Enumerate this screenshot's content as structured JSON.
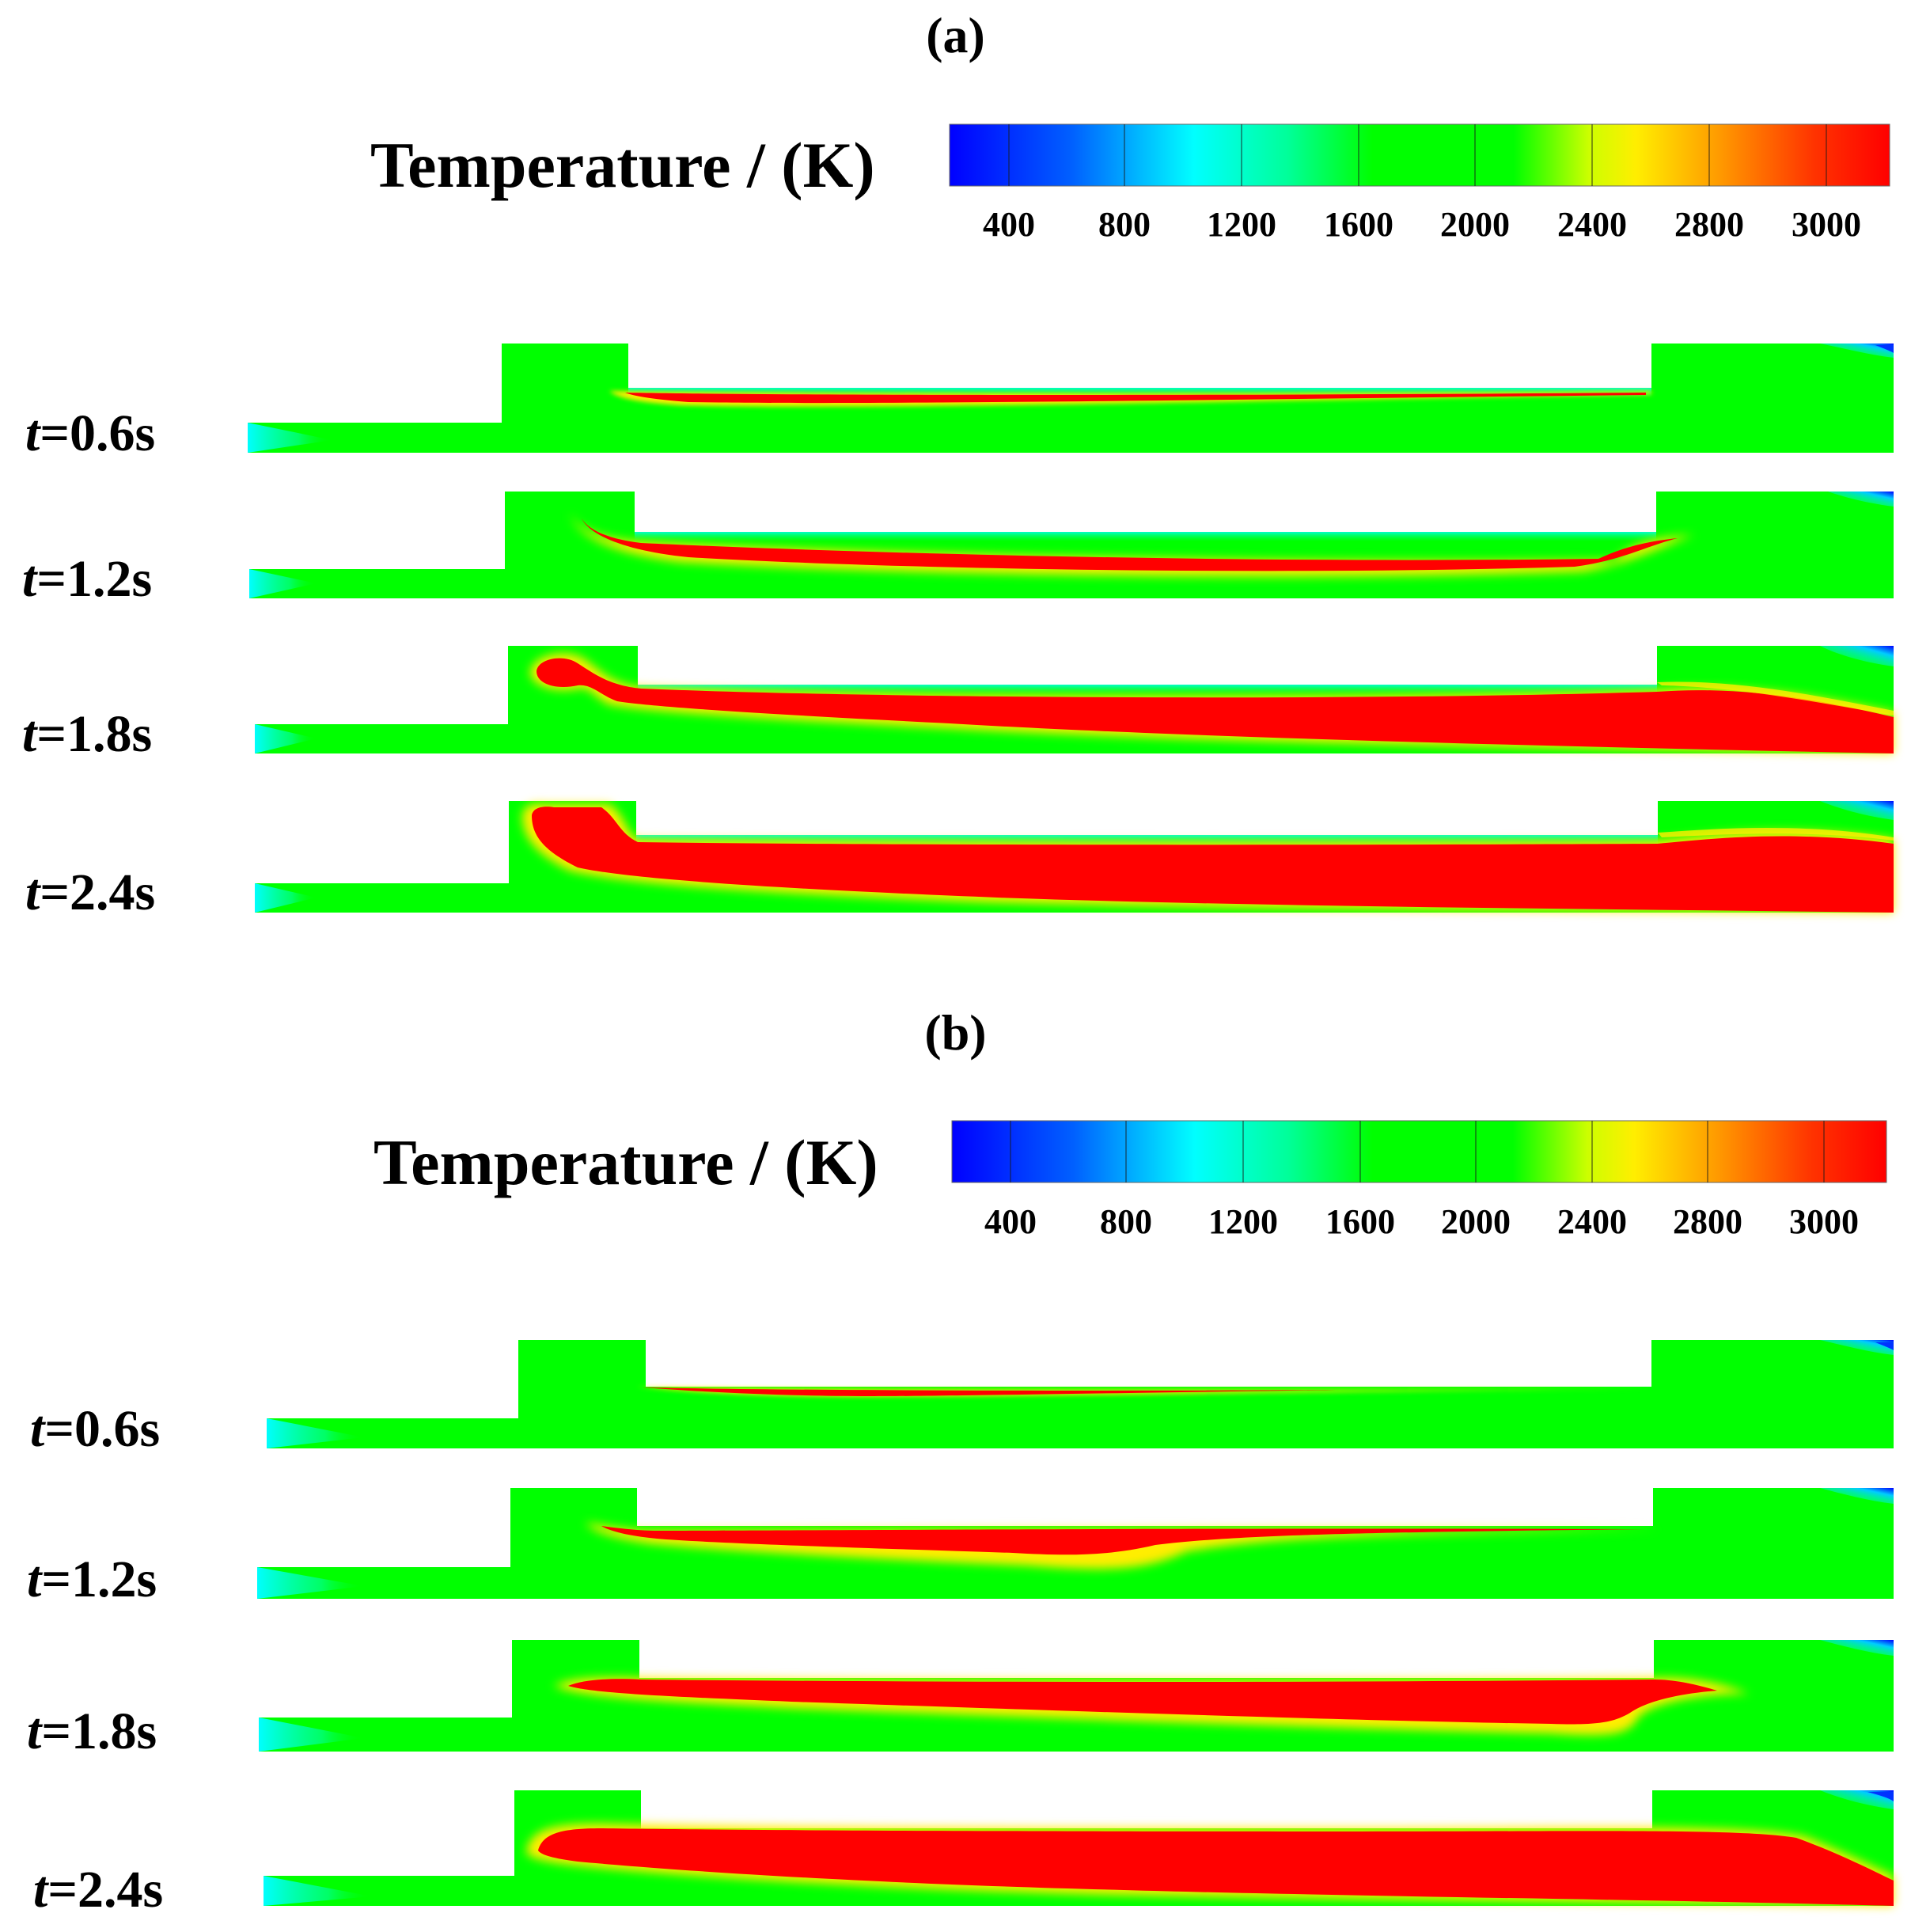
{
  "panels": [
    {
      "id": "a",
      "label": "(a)",
      "legend": {
        "title": "Temperature / (K)",
        "ticks": [
          "400",
          "800",
          "1200",
          "1600",
          "2000",
          "2400",
          "2800",
          "3000"
        ]
      },
      "rows": [
        {
          "t_var": "t",
          "t_value": "=0.6s"
        },
        {
          "t_var": "t",
          "t_value": "=1.2s"
        },
        {
          "t_var": "t",
          "t_value": "=1.8s"
        },
        {
          "t_var": "t",
          "t_value": "=2.4s"
        }
      ]
    },
    {
      "id": "b",
      "label": "(b)",
      "legend": {
        "title": "Temperature / (K)",
        "ticks": [
          "400",
          "800",
          "1200",
          "1600",
          "2000",
          "2400",
          "2800",
          "3000"
        ]
      },
      "rows": [
        {
          "t_var": "t",
          "t_value": "=0.6s"
        },
        {
          "t_var": "t",
          "t_value": "=1.2s"
        },
        {
          "t_var": "t",
          "t_value": "=1.8s"
        },
        {
          "t_var": "t",
          "t_value": "=2.4s"
        }
      ]
    }
  ],
  "colors": {
    "blue": "#0000ff",
    "cyan": "#00ffff",
    "green": "#00ff00",
    "yellow": "#ffff00",
    "orange": "#ff9900",
    "red": "#ff0000"
  }
}
